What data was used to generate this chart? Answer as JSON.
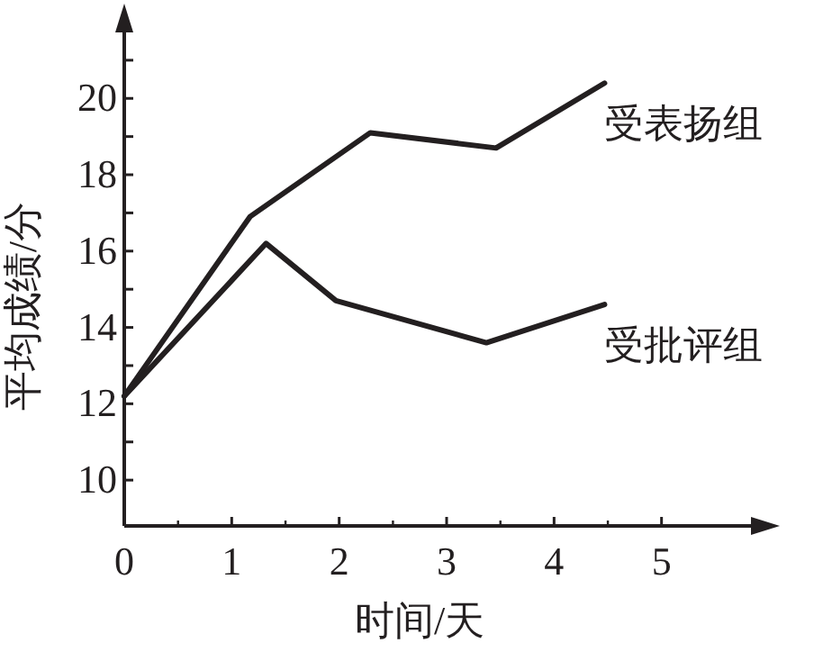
{
  "chart_data": {
    "type": "line",
    "xlabel": "时间/天",
    "ylabel": "平均成绩/分",
    "series": [
      {
        "name": "受表扬组",
        "color": "#231f20",
        "x": [
          0,
          1.17,
          2.29,
          3.46,
          4.47
        ],
        "values": [
          12.2,
          16.9,
          19.1,
          18.7,
          20.4
        ]
      },
      {
        "name": "受批评组",
        "color": "#231f20",
        "x": [
          0,
          1.32,
          1.97,
          3.37,
          4.47
        ],
        "values": [
          12.2,
          16.2,
          14.7,
          13.6,
          14.6
        ]
      }
    ],
    "xlim": [
      0,
      6
    ],
    "ylim": [
      8.8,
      22.2
    ],
    "xticks": [
      0,
      1,
      2,
      3,
      4,
      5
    ],
    "yticks": [
      10,
      {
        "value": 11,
        "label": null
      },
      12,
      {
        "value": 13,
        "label": null
      },
      14,
      {
        "value": 15,
        "label": null
      },
      16,
      {
        "value": 17,
        "label": null
      },
      18,
      {
        "value": 19,
        "label": null
      },
      20,
      {
        "value": 21,
        "label": null
      }
    ],
    "line_style": "solid",
    "grid": false
  }
}
